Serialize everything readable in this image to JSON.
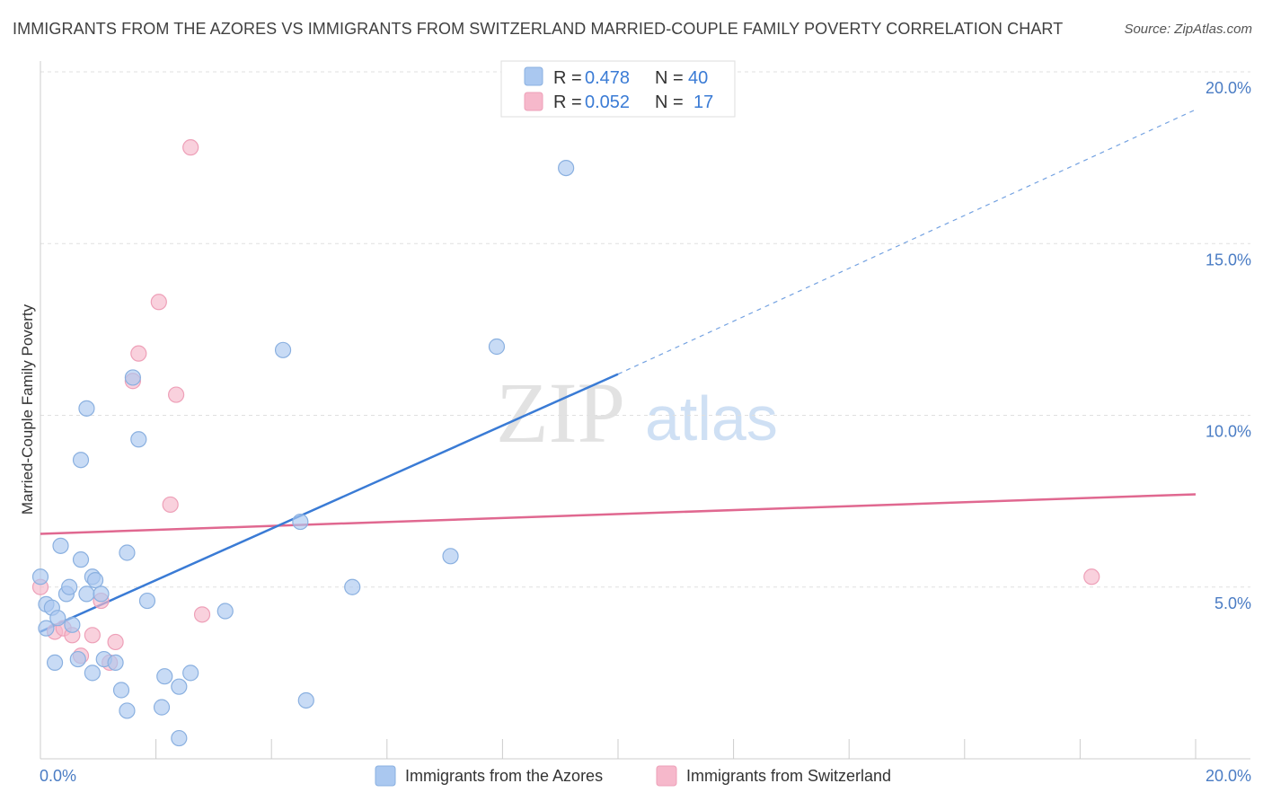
{
  "header": {
    "title": "IMMIGRANTS FROM THE AZORES VS IMMIGRANTS FROM SWITZERLAND MARRIED-COUPLE FAMILY POVERTY CORRELATION CHART",
    "source": "Source: ZipAtlas.com"
  },
  "watermark": {
    "zip": "ZIP",
    "atlas": "atlas"
  },
  "colors": {
    "blue_fill": "#aac8f0",
    "blue_stroke": "#8ab0e0",
    "blue_line": "#3a7bd5",
    "pink_fill": "#f6b8cb",
    "pink_stroke": "#eea0b8",
    "pink_line": "#e06890",
    "grid": "#e0e0e0",
    "axis_text": "#4a7cc4"
  },
  "stats": [
    {
      "r_label": "R =",
      "r_value": "0.478",
      "n_label": "N =",
      "n_value": "40"
    },
    {
      "r_label": "R =",
      "r_value": "0.052",
      "n_label": "N =",
      "n_value": "17"
    }
  ],
  "chart_data": {
    "type": "scatter",
    "title": "IMMIGRANTS FROM THE AZORES VS IMMIGRANTS FROM SWITZERLAND MARRIED-COUPLE FAMILY POVERTY CORRELATION CHART",
    "xlabel": "",
    "ylabel": "Married-Couple Family Poverty",
    "xlim": [
      0,
      20
    ],
    "ylim": [
      0,
      20
    ],
    "x_tick_labels": [
      "0.0%",
      "20.0%"
    ],
    "y_tick_labels": [
      "5.0%",
      "10.0%",
      "15.0%",
      "20.0%"
    ],
    "y_ticks": [
      5,
      10,
      15,
      20
    ],
    "legend_position": "bottom",
    "series": [
      {
        "name": "Immigrants from the Azores",
        "color": "blue",
        "r": 0.478,
        "n": 40,
        "trend": {
          "x0": 0.0,
          "y0": 3.7,
          "x1": 10.0,
          "y1": 11.2,
          "x_dash_end": 20.0,
          "y_dash_end": 18.9
        },
        "points": [
          [
            0.0,
            5.3
          ],
          [
            0.1,
            3.8
          ],
          [
            0.1,
            4.5
          ],
          [
            0.2,
            4.4
          ],
          [
            0.25,
            2.8
          ],
          [
            0.3,
            4.1
          ],
          [
            0.35,
            6.2
          ],
          [
            0.45,
            4.8
          ],
          [
            0.5,
            5.0
          ],
          [
            0.55,
            3.9
          ],
          [
            0.65,
            2.9
          ],
          [
            0.7,
            5.8
          ],
          [
            0.7,
            8.7
          ],
          [
            0.8,
            10.2
          ],
          [
            0.8,
            4.8
          ],
          [
            0.9,
            2.5
          ],
          [
            0.9,
            5.3
          ],
          [
            0.95,
            5.2
          ],
          [
            1.05,
            4.8
          ],
          [
            1.1,
            2.9
          ],
          [
            1.3,
            2.8
          ],
          [
            1.4,
            2.0
          ],
          [
            1.5,
            1.4
          ],
          [
            1.5,
            6.0
          ],
          [
            1.6,
            11.1
          ],
          [
            1.7,
            9.3
          ],
          [
            1.85,
            4.6
          ],
          [
            2.1,
            1.5
          ],
          [
            2.15,
            2.4
          ],
          [
            2.4,
            2.1
          ],
          [
            2.4,
            0.6
          ],
          [
            2.6,
            2.5
          ],
          [
            3.2,
            4.3
          ],
          [
            4.2,
            11.9
          ],
          [
            4.5,
            6.9
          ],
          [
            4.6,
            1.7
          ],
          [
            5.4,
            5.0
          ],
          [
            7.1,
            5.9
          ],
          [
            7.9,
            12.0
          ],
          [
            9.1,
            17.2
          ]
        ]
      },
      {
        "name": "Immigrants from Switzerland",
        "color": "pink",
        "r": 0.052,
        "n": 17,
        "trend": {
          "x0": 0.0,
          "y0": 6.55,
          "x1": 20.0,
          "y1": 7.7
        },
        "points": [
          [
            0.0,
            5.0
          ],
          [
            0.25,
            3.7
          ],
          [
            0.4,
            3.8
          ],
          [
            0.55,
            3.6
          ],
          [
            0.7,
            3.0
          ],
          [
            0.9,
            3.6
          ],
          [
            1.05,
            4.6
          ],
          [
            1.2,
            2.8
          ],
          [
            1.3,
            3.4
          ],
          [
            1.6,
            11.0
          ],
          [
            1.7,
            11.8
          ],
          [
            2.05,
            13.3
          ],
          [
            2.25,
            7.4
          ],
          [
            2.35,
            10.6
          ],
          [
            2.6,
            17.8
          ],
          [
            2.8,
            4.2
          ],
          [
            18.2,
            5.3
          ]
        ]
      }
    ]
  }
}
